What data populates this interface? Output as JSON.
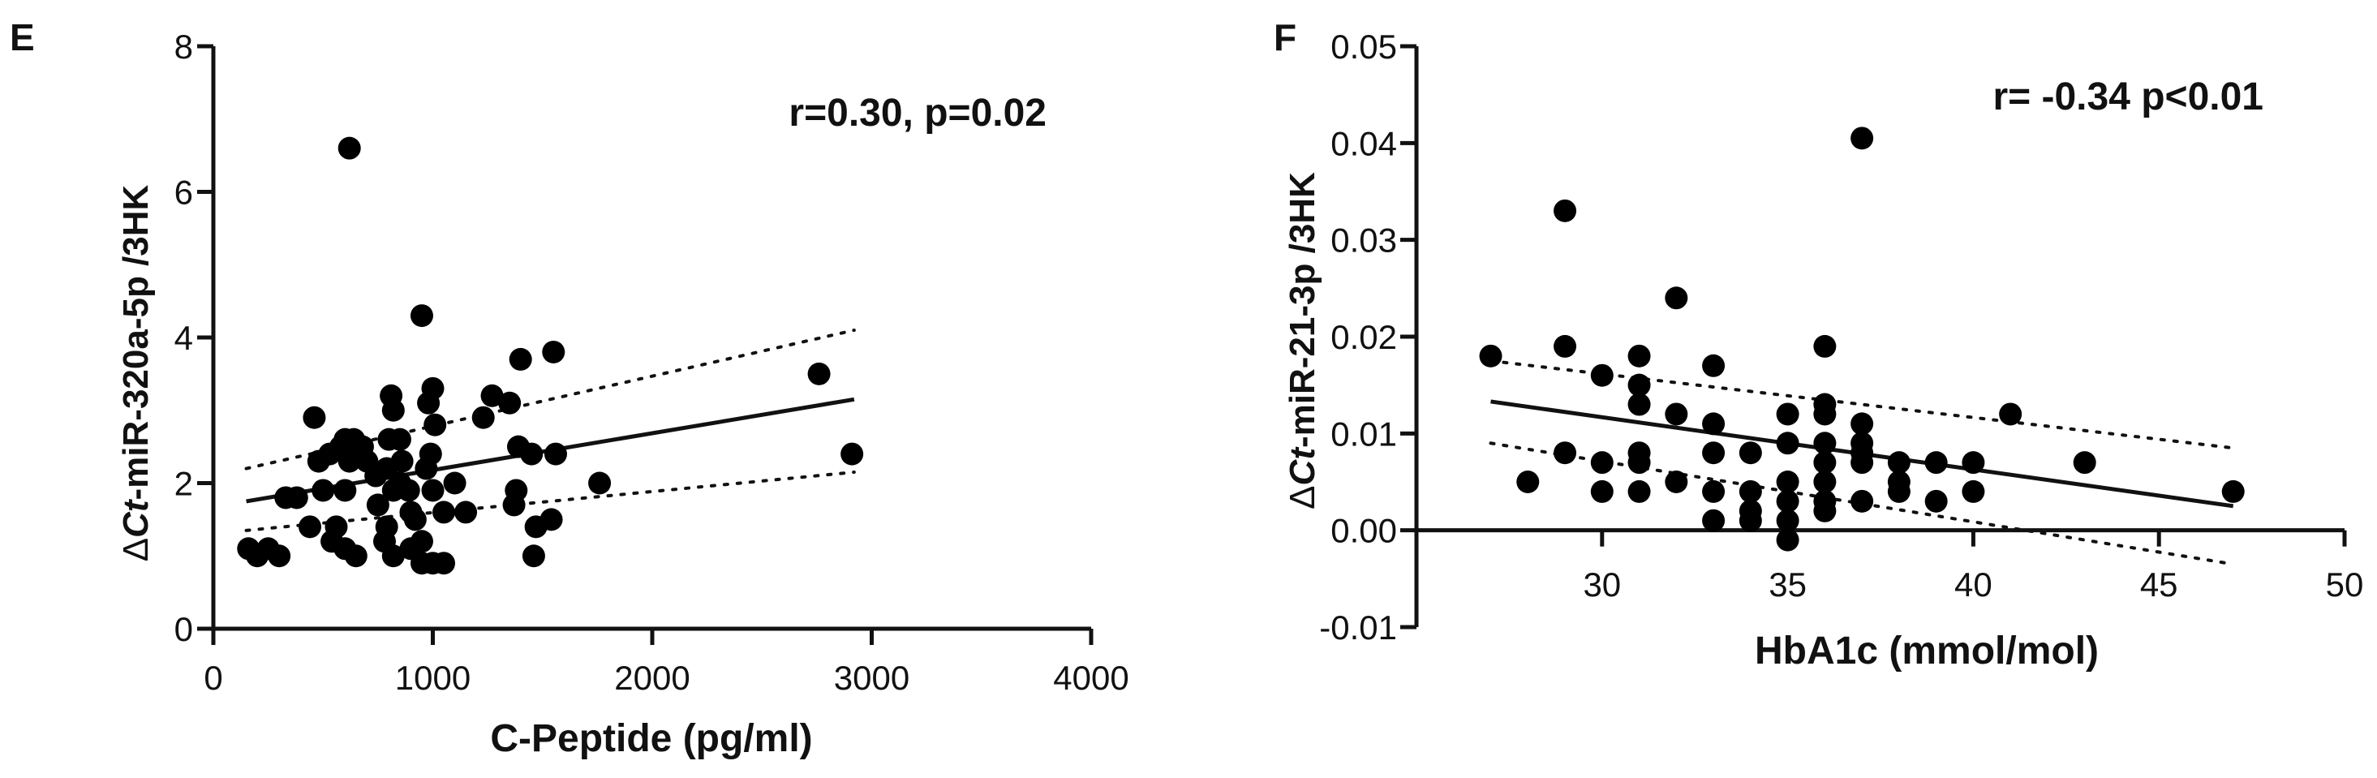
{
  "chart_data": [
    {
      "panel": "E",
      "type": "scatter",
      "xlabel": "C-Peptide (pg/ml)",
      "ylabel": "ΔCt-miR-320a-5p /3HK",
      "ylabel_parts": {
        "delta": "Δ",
        "ct": "Ct",
        "rest": "-miR-320a-5p /3HK"
      },
      "annotation": "r=0.30, p=0.02",
      "xlim": [
        0,
        4000
      ],
      "ylim": [
        0,
        8
      ],
      "xticks": [
        "0",
        "1000",
        "2000",
        "3000",
        "4000"
      ],
      "yticks": [
        "0",
        "2",
        "4",
        "6",
        "8"
      ],
      "xtick_values": [
        0,
        1000,
        2000,
        3000,
        4000
      ],
      "ytick_values": [
        0,
        2,
        4,
        6,
        8
      ],
      "points": [
        [
          620,
          6.6
        ],
        [
          950,
          4.3
        ],
        [
          2760,
          3.5
        ],
        [
          2910,
          2.4
        ],
        [
          1760,
          2.0
        ],
        [
          1550,
          3.8
        ],
        [
          1400,
          3.7
        ],
        [
          1350,
          3.1
        ],
        [
          1270,
          3.2
        ],
        [
          1230,
          2.9
        ],
        [
          1390,
          2.5
        ],
        [
          1450,
          2.4
        ],
        [
          1560,
          2.4
        ],
        [
          1380,
          1.9
        ],
        [
          1370,
          1.7
        ],
        [
          1470,
          1.4
        ],
        [
          1540,
          1.5
        ],
        [
          1460,
          1.0
        ],
        [
          1150,
          1.6
        ],
        [
          1050,
          1.6
        ],
        [
          1010,
          2.8
        ],
        [
          1000,
          3.3
        ],
        [
          980,
          3.1
        ],
        [
          990,
          2.4
        ],
        [
          970,
          2.2
        ],
        [
          1000,
          1.9
        ],
        [
          1050,
          0.9
        ],
        [
          1000,
          0.9
        ],
        [
          950,
          0.9
        ],
        [
          950,
          1.2
        ],
        [
          900,
          1.6
        ],
        [
          890,
          1.9
        ],
        [
          860,
          2.3
        ],
        [
          850,
          2.6
        ],
        [
          820,
          3.0
        ],
        [
          810,
          3.2
        ],
        [
          800,
          2.6
        ],
        [
          790,
          2.2
        ],
        [
          820,
          1.9
        ],
        [
          790,
          1.4
        ],
        [
          780,
          1.2
        ],
        [
          820,
          1.0
        ],
        [
          900,
          1.1
        ],
        [
          750,
          1.7
        ],
        [
          740,
          2.1
        ],
        [
          700,
          2.3
        ],
        [
          680,
          2.5
        ],
        [
          640,
          2.6
        ],
        [
          620,
          2.3
        ],
        [
          600,
          1.9
        ],
        [
          580,
          2.5
        ],
        [
          560,
          1.4
        ],
        [
          600,
          1.1
        ],
        [
          650,
          1.0
        ],
        [
          540,
          1.2
        ],
        [
          500,
          1.9
        ],
        [
          480,
          2.3
        ],
        [
          460,
          2.9
        ],
        [
          440,
          1.4
        ],
        [
          380,
          1.8
        ],
        [
          330,
          1.8
        ],
        [
          300,
          1.0
        ],
        [
          250,
          1.1
        ],
        [
          200,
          1.0
        ],
        [
          160,
          1.1
        ],
        [
          530,
          2.4
        ],
        [
          600,
          2.6
        ],
        [
          850,
          2.0
        ],
        [
          920,
          1.5
        ],
        [
          1100,
          2.0
        ]
      ],
      "regression": {
        "x": [
          150,
          2920
        ],
        "y": [
          1.75,
          3.15
        ]
      },
      "ci_upper": {
        "x": [
          150,
          2920
        ],
        "y": [
          2.2,
          4.1
        ]
      },
      "ci_lower": {
        "x": [
          150,
          2920
        ],
        "y": [
          1.35,
          2.15
        ]
      }
    },
    {
      "panel": "F",
      "type": "scatter",
      "xlabel": "HbA1c (mmol/mol)",
      "ylabel": "ΔCt-miR-21-3p /3HK",
      "ylabel_parts": {
        "delta": "Δ",
        "ct": "Ct",
        "rest": "-miR-21-3p /3HK"
      },
      "annotation": "r= -0.34 p<0.01",
      "xlim": [
        25,
        50
      ],
      "ylim": [
        -0.01,
        0.05
      ],
      "xticks": [
        "30",
        "35",
        "40",
        "45",
        "50"
      ],
      "yticks": [
        "-0.01",
        "0.00",
        "0.01",
        "0.02",
        "0.03",
        "0.04",
        "0.05"
      ],
      "xtick_values": [
        30,
        35,
        40,
        45,
        50
      ],
      "ytick_values": [
        -0.01,
        0,
        0.01,
        0.02,
        0.03,
        0.04,
        0.05
      ],
      "points": [
        [
          27,
          0.018
        ],
        [
          28,
          0.005
        ],
        [
          29,
          0.033
        ],
        [
          29,
          0.019
        ],
        [
          29,
          0.008
        ],
        [
          30,
          0.016
        ],
        [
          30,
          0.007
        ],
        [
          30,
          0.004
        ],
        [
          31,
          0.018
        ],
        [
          31,
          0.015
        ],
        [
          31,
          0.013
        ],
        [
          31,
          0.008
        ],
        [
          31,
          0.007
        ],
        [
          31,
          0.004
        ],
        [
          32,
          0.024
        ],
        [
          32,
          0.012
        ],
        [
          32,
          0.005
        ],
        [
          33,
          0.017
        ],
        [
          33,
          0.011
        ],
        [
          33,
          0.008
        ],
        [
          33,
          0.004
        ],
        [
          33,
          0.001
        ],
        [
          34,
          0.008
        ],
        [
          34,
          0.004
        ],
        [
          34,
          0.002
        ],
        [
          34,
          0.001
        ],
        [
          35,
          0.012
        ],
        [
          35,
          0.009
        ],
        [
          35,
          0.005
        ],
        [
          35,
          0.003
        ],
        [
          35,
          0.001
        ],
        [
          35,
          -0.001
        ],
        [
          36,
          0.019
        ],
        [
          36,
          0.013
        ],
        [
          36,
          0.012
        ],
        [
          36,
          0.009
        ],
        [
          36,
          0.007
        ],
        [
          36,
          0.005
        ],
        [
          36,
          0.003
        ],
        [
          36,
          0.002
        ],
        [
          37,
          0.0405
        ],
        [
          37,
          0.011
        ],
        [
          37,
          0.009
        ],
        [
          37,
          0.008
        ],
        [
          37,
          0.007
        ],
        [
          37,
          0.003
        ],
        [
          38,
          0.007
        ],
        [
          38,
          0.005
        ],
        [
          38,
          0.004
        ],
        [
          39,
          0.007
        ],
        [
          39,
          0.003
        ],
        [
          40,
          0.007
        ],
        [
          40,
          0.004
        ],
        [
          41,
          0.012
        ],
        [
          43,
          0.007
        ],
        [
          47,
          0.004
        ]
      ],
      "regression": {
        "x": [
          27,
          47
        ],
        "y": [
          0.0133,
          0.0025
        ]
      },
      "ci_upper": {
        "x": [
          27,
          47
        ],
        "y": [
          0.0175,
          0.0085
        ]
      },
      "ci_lower": {
        "x": [
          27,
          47
        ],
        "y": [
          0.009,
          -0.0035
        ]
      }
    }
  ]
}
